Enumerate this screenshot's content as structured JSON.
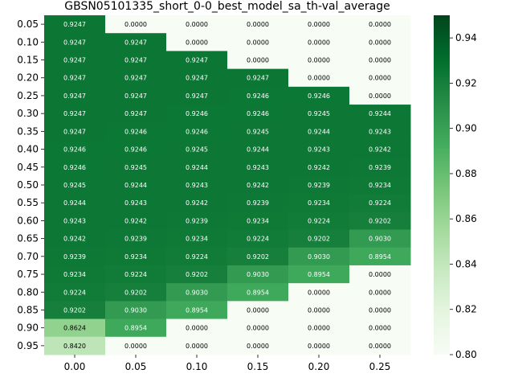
{
  "chart_data": {
    "type": "heatmap",
    "title": "GBSN05101335_short_0-0_best_model_sa_th-val_average",
    "xlabel": "",
    "ylabel": "",
    "x_categories": [
      "0.00",
      "0.05",
      "0.10",
      "0.15",
      "0.20",
      "0.25"
    ],
    "y_categories": [
      "0.05",
      "0.10",
      "0.15",
      "0.20",
      "0.25",
      "0.30",
      "0.35",
      "0.40",
      "0.45",
      "0.50",
      "0.55",
      "0.60",
      "0.65",
      "0.70",
      "0.75",
      "0.80",
      "0.85",
      "0.90",
      "0.95"
    ],
    "values": [
      [
        0.9247,
        0.0,
        0.0,
        0.0,
        0.0,
        0.0
      ],
      [
        0.9247,
        0.9247,
        0.0,
        0.0,
        0.0,
        0.0
      ],
      [
        0.9247,
        0.9247,
        0.9247,
        0.0,
        0.0,
        0.0
      ],
      [
        0.9247,
        0.9247,
        0.9247,
        0.9247,
        0.0,
        0.0
      ],
      [
        0.9247,
        0.9247,
        0.9247,
        0.9246,
        0.9246,
        0.0
      ],
      [
        0.9247,
        0.9247,
        0.9246,
        0.9246,
        0.9245,
        0.9244
      ],
      [
        0.9247,
        0.9246,
        0.9246,
        0.9245,
        0.9244,
        0.9243
      ],
      [
        0.9246,
        0.9246,
        0.9245,
        0.9244,
        0.9243,
        0.9242
      ],
      [
        0.9246,
        0.9245,
        0.9244,
        0.9243,
        0.9242,
        0.9239
      ],
      [
        0.9245,
        0.9244,
        0.9243,
        0.9242,
        0.9239,
        0.9234
      ],
      [
        0.9244,
        0.9243,
        0.9242,
        0.9239,
        0.9234,
        0.9224
      ],
      [
        0.9243,
        0.9242,
        0.9239,
        0.9234,
        0.9224,
        0.9202
      ],
      [
        0.9242,
        0.9239,
        0.9234,
        0.9224,
        0.9202,
        0.903
      ],
      [
        0.9239,
        0.9234,
        0.9224,
        0.9202,
        0.903,
        0.8954
      ],
      [
        0.9234,
        0.9224,
        0.9202,
        0.903,
        0.8954,
        0.0
      ],
      [
        0.9224,
        0.9202,
        0.903,
        0.8954,
        0.0,
        0.0
      ],
      [
        0.9202,
        0.903,
        0.8954,
        0.0,
        0.0,
        0.0
      ],
      [
        0.8624,
        0.8954,
        0.0,
        0.0,
        0.0,
        0.0
      ],
      [
        0.842,
        0.0,
        0.0,
        0.0,
        0.0,
        0.0
      ]
    ],
    "colorbar": {
      "min": 0.8,
      "max": 0.95,
      "ticks": [
        "0.80",
        "0.82",
        "0.84",
        "0.86",
        "0.88",
        "0.90",
        "0.92",
        "0.94"
      ],
      "colormap": "Greens"
    },
    "grid": false,
    "legend": "colorbar-right"
  }
}
